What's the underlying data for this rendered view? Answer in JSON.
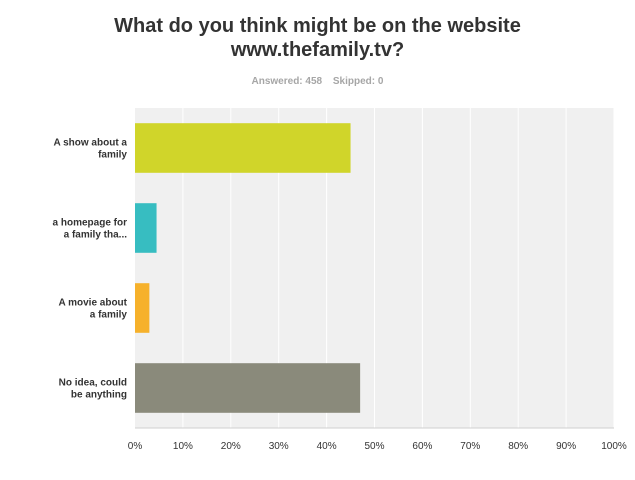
{
  "survey": {
    "question_line1": "What do you think might be on the website",
    "question_line2": "www.thefamily.tv?",
    "answered": "Answered: 458",
    "skipped": "Skipped: 0"
  },
  "chart_data": {
    "type": "bar",
    "orientation": "horizontal",
    "title": "What do you think might be on the website www.thefamily.tv?",
    "categories": [
      [
        "A show about a",
        "family"
      ],
      [
        "a homepage for",
        "a family tha..."
      ],
      [
        "A movie about",
        "a family"
      ],
      [
        "No idea, could",
        "be anything"
      ]
    ],
    "values": [
      45,
      4.5,
      3,
      47
    ],
    "colors": [
      "#d0d52a",
      "#37bdc1",
      "#f6b12b",
      "#8a8a7b"
    ],
    "xlim": [
      0,
      100
    ],
    "xticks": [
      "0%",
      "10%",
      "20%",
      "30%",
      "40%",
      "50%",
      "60%",
      "70%",
      "80%",
      "90%",
      "100%"
    ],
    "grid": true,
    "legend": "none"
  }
}
